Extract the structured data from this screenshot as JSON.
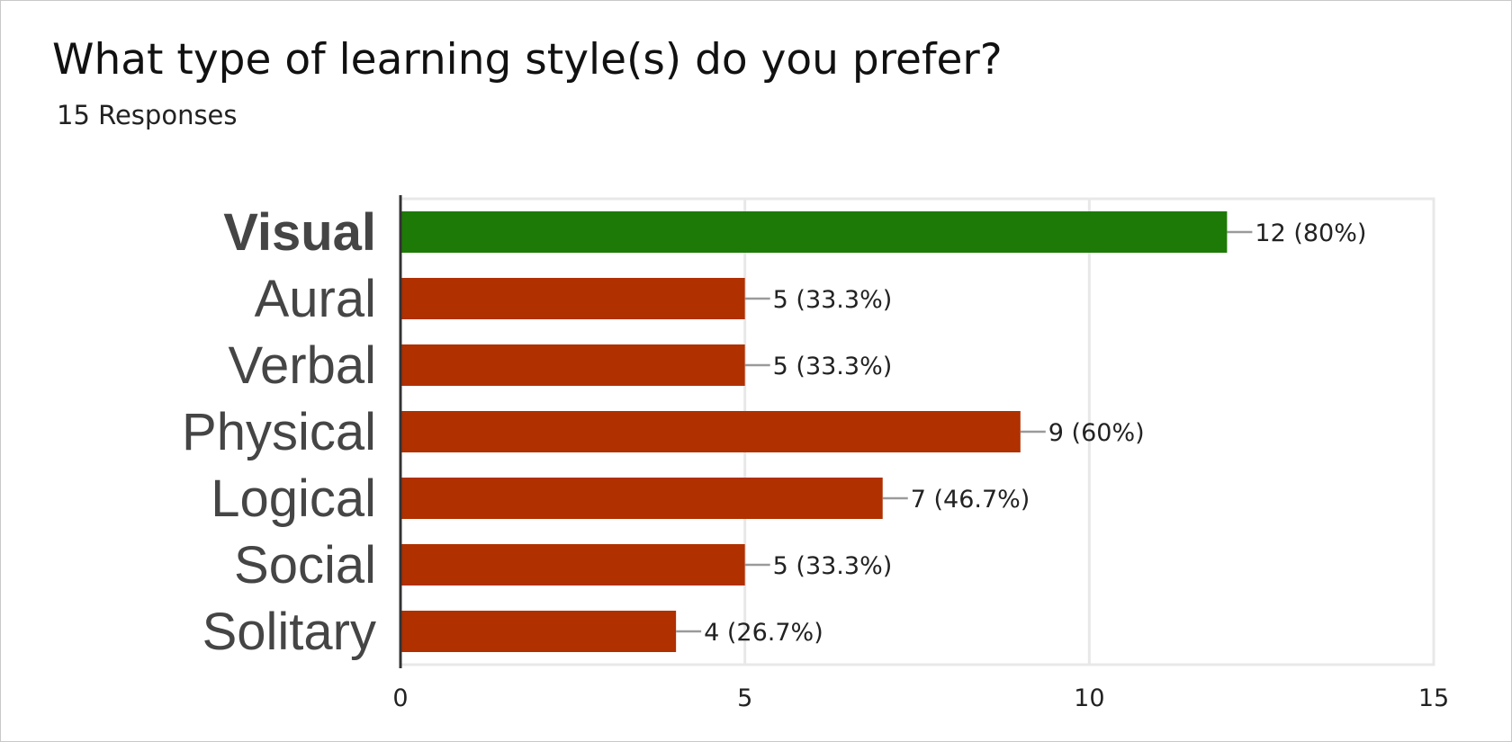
{
  "title": "What type of learning style(s) do you prefer?",
  "subtitle": "15 Responses",
  "colors": {
    "highlight_bar": "#1e7a06",
    "bar": "#b03000",
    "axis": "#333333",
    "grid": "#e8e8e8",
    "leader": "#9a9a9a",
    "category_text": "#454545",
    "label_text": "#222222"
  },
  "chart_data": {
    "type": "bar",
    "orientation": "horizontal",
    "title": "What type of learning style(s) do you prefer?",
    "subtitle": "15 Responses",
    "categories": [
      "Visual",
      "Aural",
      "Verbal",
      "Physical",
      "Logical",
      "Social",
      "Solitary"
    ],
    "values": [
      12,
      5,
      5,
      9,
      7,
      5,
      4
    ],
    "data_labels": [
      "12 (80%)",
      "5 (33.3%)",
      "5 (33.3%)",
      "9 (60%)",
      "7 (46.7%)",
      "5 (33.3%)",
      "4 (26.7%)"
    ],
    "highlighted_category": "Visual",
    "xlim": [
      0,
      15
    ],
    "xticks": [
      "0",
      "5",
      "10",
      "15"
    ],
    "xlabel": "",
    "ylabel": "",
    "grid": true,
    "legend": "none"
  }
}
